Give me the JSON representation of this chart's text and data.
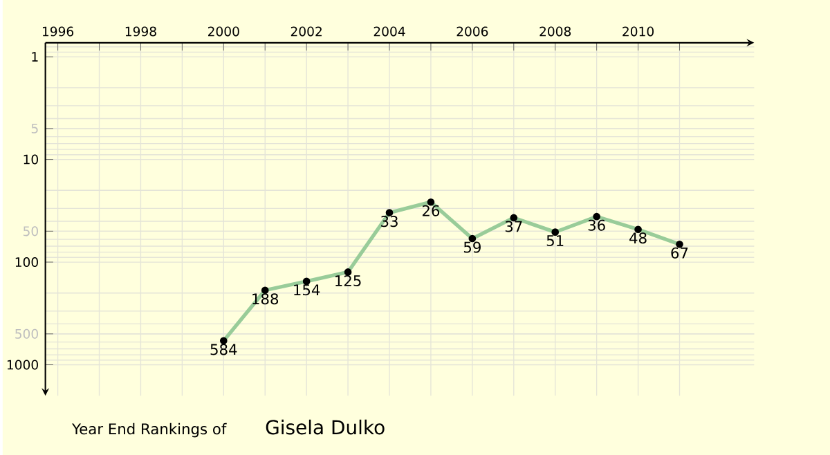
{
  "chart_data": {
    "type": "line",
    "title": "Year End Rankings of",
    "subtitle": "Gisela Dulko",
    "x": [
      2000,
      2001,
      2002,
      2003,
      2004,
      2005,
      2006,
      2007,
      2008,
      2009,
      2010,
      2011
    ],
    "values": [
      584,
      188,
      154,
      125,
      33,
      26,
      59,
      37,
      51,
      36,
      48,
      67
    ],
    "color": "#99cc99",
    "marker": "circle",
    "line_style": "solid",
    "data_labels": true,
    "log": "y",
    "grid": true,
    "xlim": [
      1995.7,
      2012.8
    ],
    "ylim": [
      2000,
      0.73
    ],
    "xticks": [
      1996,
      {
        "value": 1997,
        "label": null
      },
      1998,
      {
        "value": 1999,
        "label": null
      },
      2000,
      {
        "value": 2001,
        "label": null
      },
      2002,
      {
        "value": 2003,
        "label": null
      },
      2004,
      {
        "value": 2005,
        "label": null
      },
      2006,
      {
        "value": 2007,
        "label": null
      },
      2008,
      {
        "value": 2009,
        "label": null
      },
      2010,
      {
        "value": 2011,
        "label": null
      }
    ],
    "yticks": [
      1,
      5,
      10,
      50,
      100,
      500,
      1000
    ]
  }
}
